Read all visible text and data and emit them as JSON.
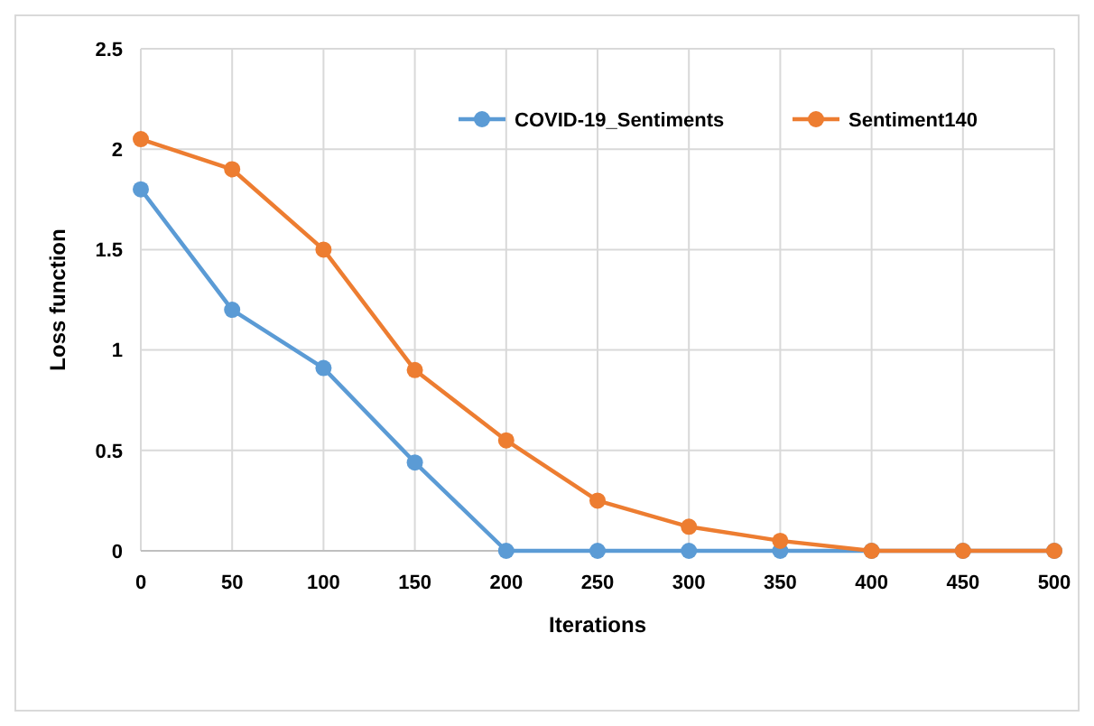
{
  "chart_data": {
    "type": "line",
    "xlabel": "Iterations",
    "ylabel": "Loss function",
    "x": [
      0,
      50,
      100,
      150,
      200,
      250,
      300,
      350,
      400,
      450,
      500
    ],
    "series": [
      {
        "name": "COVID-19_Sentiments",
        "color": "#5b9bd5",
        "values": [
          1.8,
          1.2,
          0.91,
          0.44,
          0,
          0,
          0,
          0,
          0,
          0,
          0
        ]
      },
      {
        "name": "Sentiment140",
        "color": "#ed7d31",
        "values": [
          2.05,
          1.9,
          1.5,
          0.9,
          0.55,
          0.25,
          0.12,
          0.05,
          0,
          0,
          0
        ]
      }
    ],
    "xlim": [
      0,
      500
    ],
    "xticks": [
      0,
      50,
      100,
      150,
      200,
      250,
      300,
      350,
      400,
      450,
      500
    ],
    "ylim": [
      0,
      2.5
    ],
    "yticks": [
      0,
      0.5,
      1,
      1.5,
      2,
      2.5
    ],
    "grid": true,
    "legend": "top right",
    "marker": "circle",
    "line_style": "solid"
  }
}
